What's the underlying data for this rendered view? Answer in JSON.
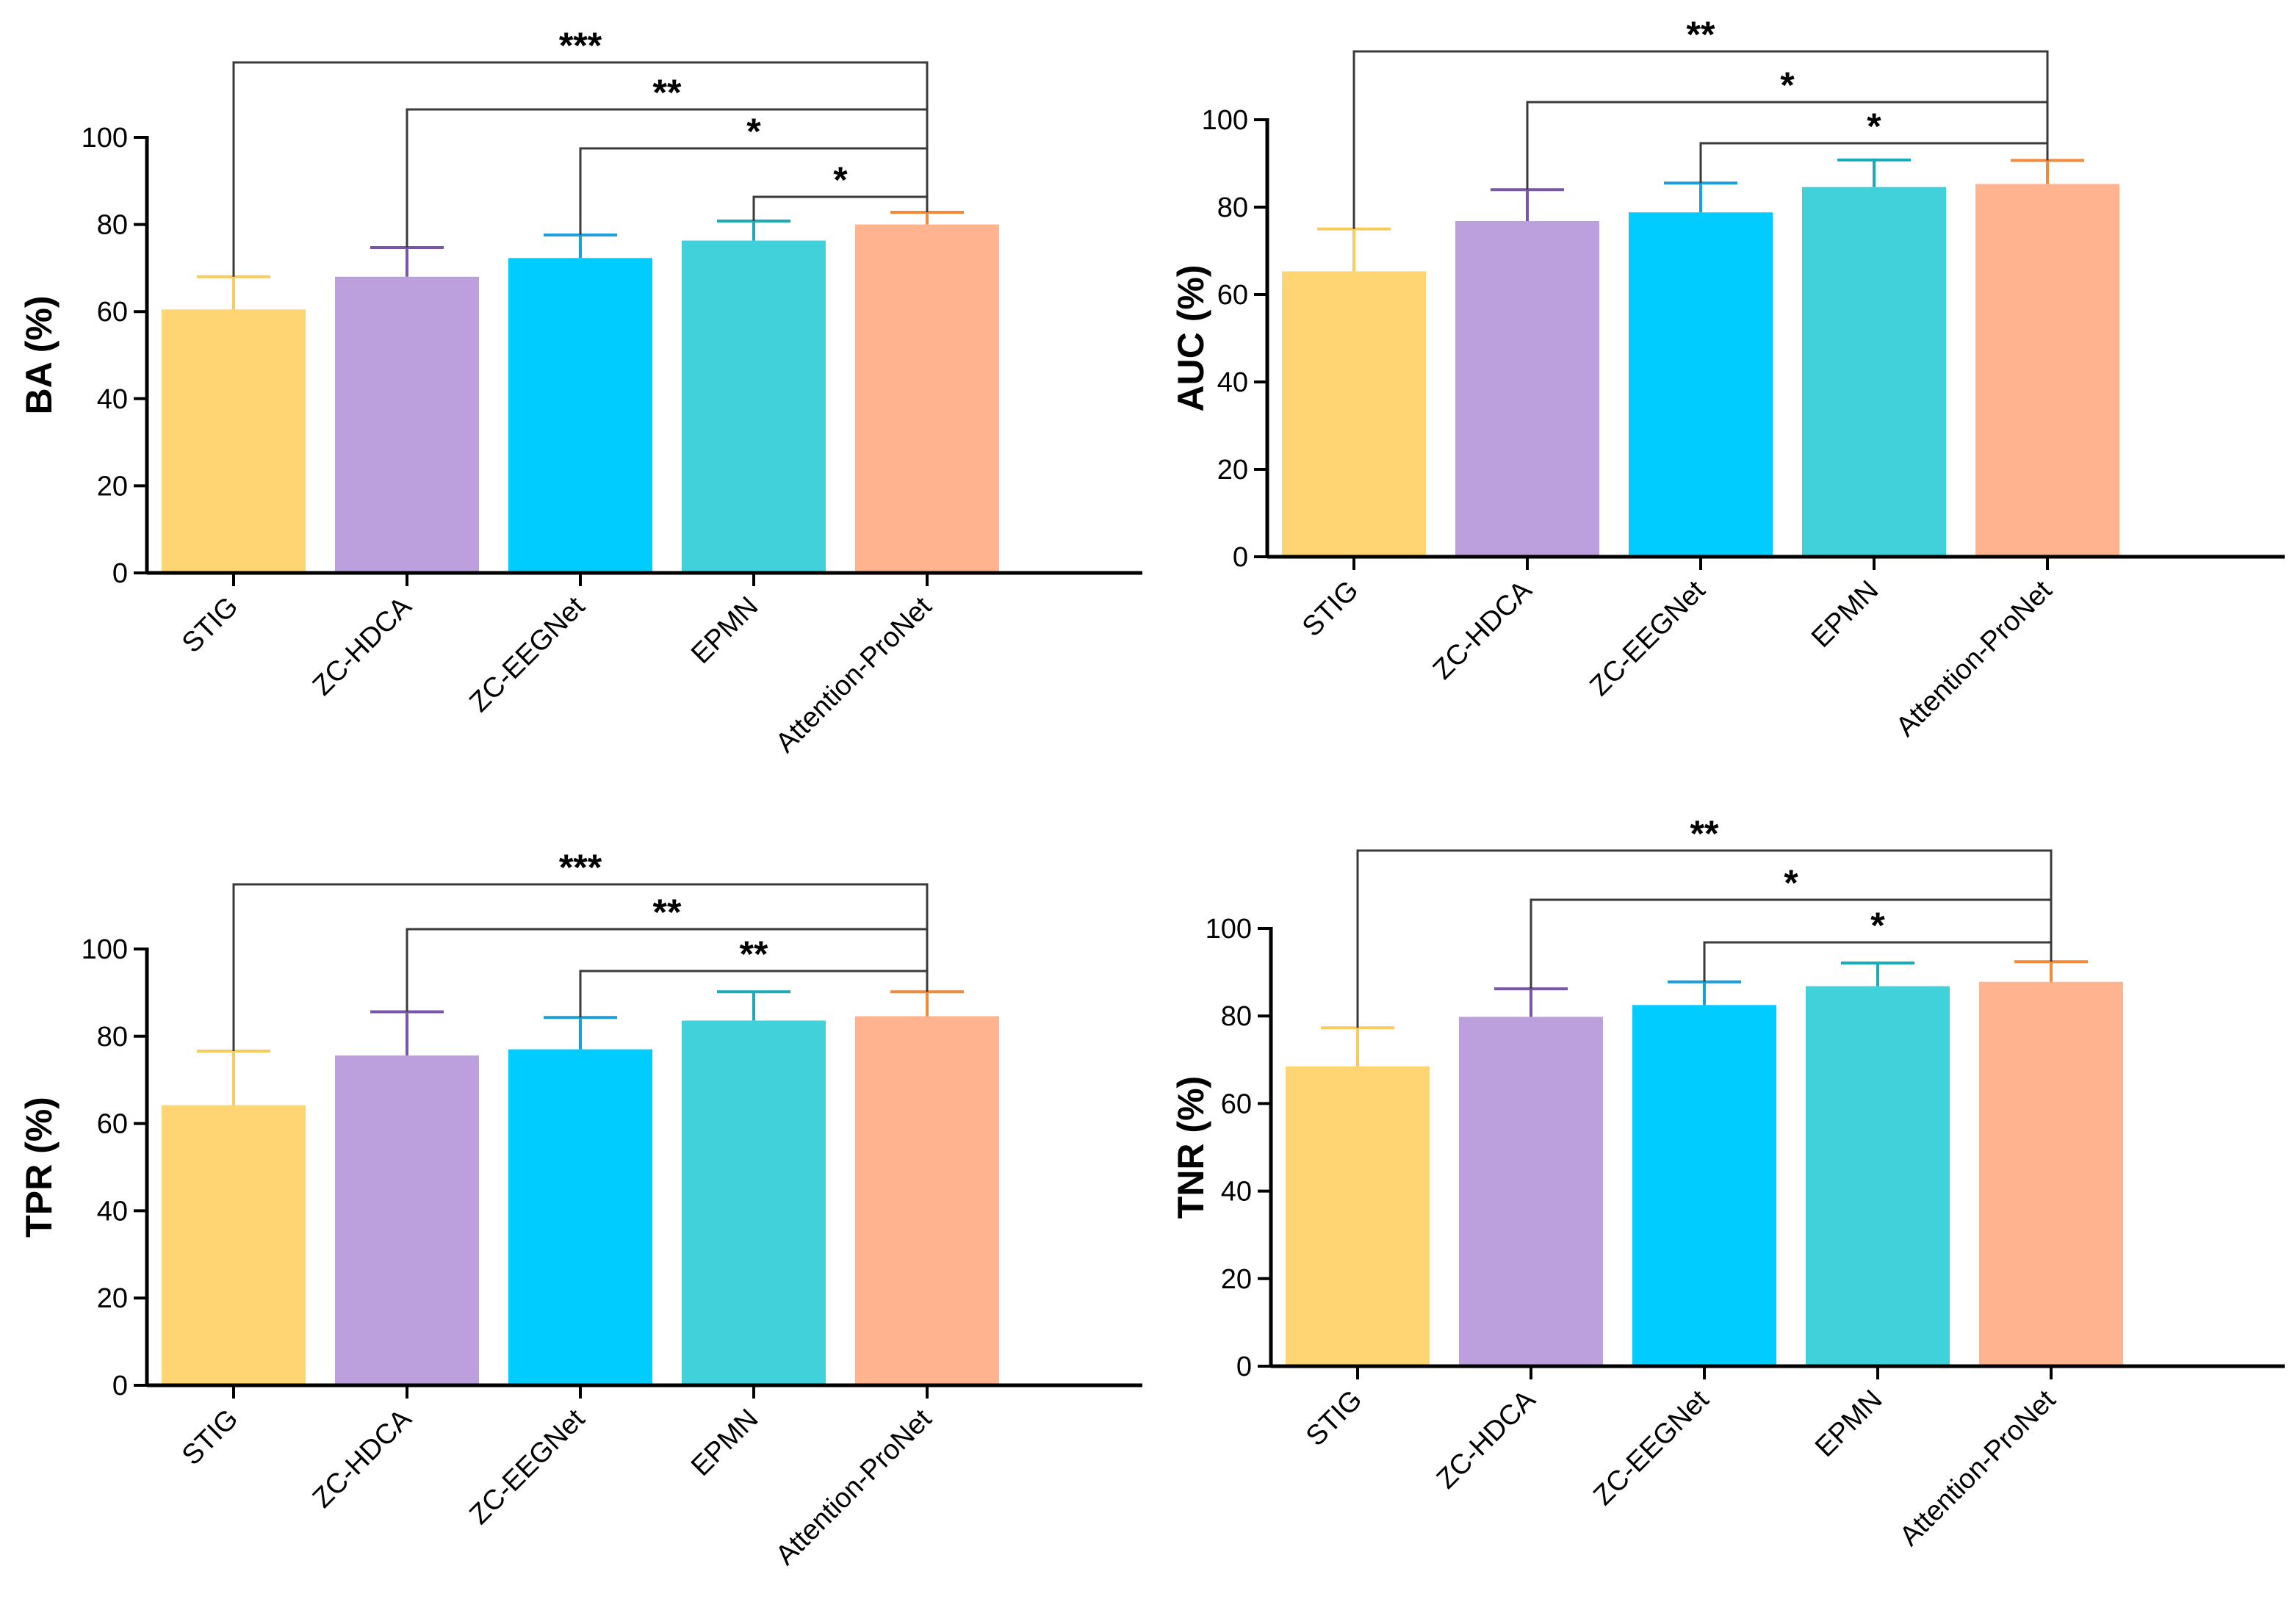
{
  "chart_data": [
    {
      "type": "bar",
      "ylabel": "BA (%)",
      "ylim": [
        0,
        100
      ],
      "yticks": [
        0,
        20,
        40,
        60,
        80,
        100
      ],
      "categories": [
        "STIG",
        "ZC-HDCA",
        "ZC-EEGNet",
        "EPMN",
        "Attention-ProNet"
      ],
      "values": [
        60.5,
        68.0,
        72.3,
        76.3,
        80.0
      ],
      "errors": [
        7.5,
        6.7,
        5.3,
        4.5,
        2.8
      ],
      "significance": [
        {
          "from": 0,
          "to": 4,
          "label": "***"
        },
        {
          "from": 1,
          "to": 4,
          "label": "**"
        },
        {
          "from": 2,
          "to": 4,
          "label": "*"
        },
        {
          "from": 3,
          "to": 4,
          "label": "*"
        }
      ]
    },
    {
      "type": "bar",
      "ylabel": "AUC (%)",
      "ylim": [
        0,
        100
      ],
      "yticks": [
        0,
        20,
        40,
        60,
        80,
        100
      ],
      "categories": [
        "STIG",
        "ZC-HDCA",
        "ZC-EEGNet",
        "EPMN",
        "Attention-ProNet"
      ],
      "values": [
        65.3,
        76.8,
        78.8,
        84.6,
        85.3
      ],
      "errors": [
        9.7,
        7.2,
        6.7,
        6.2,
        5.4
      ],
      "significance": [
        {
          "from": 0,
          "to": 4,
          "label": "**"
        },
        {
          "from": 1,
          "to": 4,
          "label": "*"
        },
        {
          "from": 2,
          "to": 4,
          "label": "*"
        }
      ]
    },
    {
      "type": "bar",
      "ylabel": "TPR (%)",
      "ylim": [
        0,
        100
      ],
      "yticks": [
        0,
        20,
        40,
        60,
        80,
        100
      ],
      "categories": [
        "STIG",
        "ZC-HDCA",
        "ZC-EEGNet",
        "EPMN",
        "Attention-ProNet"
      ],
      "values": [
        64.2,
        75.6,
        77.0,
        83.6,
        84.6
      ],
      "errors": [
        12.4,
        10.0,
        7.3,
        6.6,
        5.6
      ],
      "significance": [
        {
          "from": 0,
          "to": 4,
          "label": "***"
        },
        {
          "from": 1,
          "to": 4,
          "label": "**"
        },
        {
          "from": 2,
          "to": 4,
          "label": "**"
        }
      ]
    },
    {
      "type": "bar",
      "ylabel": "TNR (%)",
      "ylim": [
        0,
        100
      ],
      "yticks": [
        0,
        20,
        40,
        60,
        80,
        100
      ],
      "categories": [
        "STIG",
        "ZC-HDCA",
        "ZC-EEGNet",
        "EPMN",
        "Attention-ProNet"
      ],
      "values": [
        68.5,
        79.8,
        82.5,
        86.8,
        87.8
      ],
      "errors": [
        8.8,
        6.4,
        5.3,
        5.3,
        4.6
      ],
      "significance": [
        {
          "from": 0,
          "to": 4,
          "label": "**"
        },
        {
          "from": 1,
          "to": 4,
          "label": "*"
        },
        {
          "from": 2,
          "to": 4,
          "label": "*"
        }
      ]
    }
  ],
  "colors": {
    "bars": [
      "#FFD574",
      "#BCA0DE",
      "#00CCFF",
      "#41D1DA",
      "#FFB38E"
    ],
    "errors": [
      "#F7CB5E",
      "#7A56A8",
      "#1C9ED8",
      "#1BAAB7",
      "#F28A3A"
    ],
    "bracket": "#3a3a3a"
  }
}
